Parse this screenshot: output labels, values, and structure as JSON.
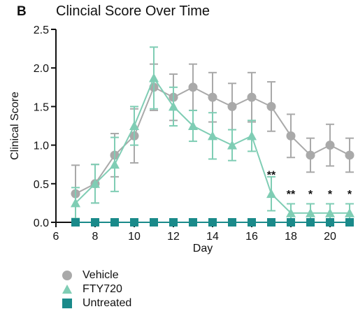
{
  "panel_letter": "B",
  "chart_data": {
    "type": "line",
    "title": "Clincial Score Over Time",
    "xlabel": "Day",
    "ylabel": "Clinical Score",
    "xlim": [
      6,
      21
    ],
    "ylim": [
      0,
      2.5
    ],
    "xticks": [
      6,
      8,
      10,
      12,
      14,
      16,
      18,
      20
    ],
    "yticks": [
      0.0,
      0.5,
      1.0,
      1.5,
      2.0,
      2.5
    ],
    "ytick_labels": [
      "0.0",
      "0.5",
      "1.0",
      "1.5",
      "2.0",
      "2.5"
    ],
    "x": [
      7,
      8,
      9,
      10,
      11,
      12,
      13,
      14,
      15,
      16,
      17,
      18,
      19,
      20,
      21
    ],
    "grid": false,
    "legend_position": "bottom-left",
    "series": [
      {
        "name": "Vehicle",
        "marker": "circle",
        "color": "#a9a9a9",
        "values": [
          0.37,
          0.5,
          0.87,
          1.12,
          1.75,
          1.62,
          1.75,
          1.62,
          1.5,
          1.62,
          1.5,
          1.12,
          0.87,
          1.0,
          0.87
        ],
        "errors": [
          0.37,
          0.25,
          0.28,
          0.35,
          0.3,
          0.3,
          0.3,
          0.32,
          0.3,
          0.32,
          0.32,
          0.28,
          0.22,
          0.27,
          0.22
        ]
      },
      {
        "name": "FTY720",
        "marker": "triangle",
        "color": "#7fcdb4",
        "values": [
          0.25,
          0.5,
          0.75,
          1.25,
          1.87,
          1.5,
          1.25,
          1.12,
          1.0,
          1.12,
          0.37,
          0.12,
          0.12,
          0.12,
          0.12
        ],
        "errors": [
          0.2,
          0.25,
          0.35,
          0.25,
          0.4,
          0.25,
          0.2,
          0.3,
          0.2,
          0.2,
          0.22,
          0.12,
          0.12,
          0.12,
          0.12
        ]
      },
      {
        "name": "Untreated",
        "marker": "square",
        "color": "#1a8a8a",
        "values": [
          0,
          0,
          0,
          0,
          0,
          0,
          0,
          0,
          0,
          0,
          0,
          0,
          0,
          0,
          0
        ],
        "errors": [
          0,
          0,
          0,
          0,
          0,
          0,
          0,
          0,
          0,
          0,
          0,
          0,
          0,
          0,
          0
        ]
      }
    ],
    "annotations": [
      {
        "x": 17,
        "y": 0.62,
        "text": "**"
      },
      {
        "x": 18,
        "y": 0.37,
        "text": "**"
      },
      {
        "x": 19,
        "y": 0.37,
        "text": "*"
      },
      {
        "x": 20,
        "y": 0.37,
        "text": "*"
      },
      {
        "x": 21,
        "y": 0.37,
        "text": "*"
      }
    ]
  }
}
